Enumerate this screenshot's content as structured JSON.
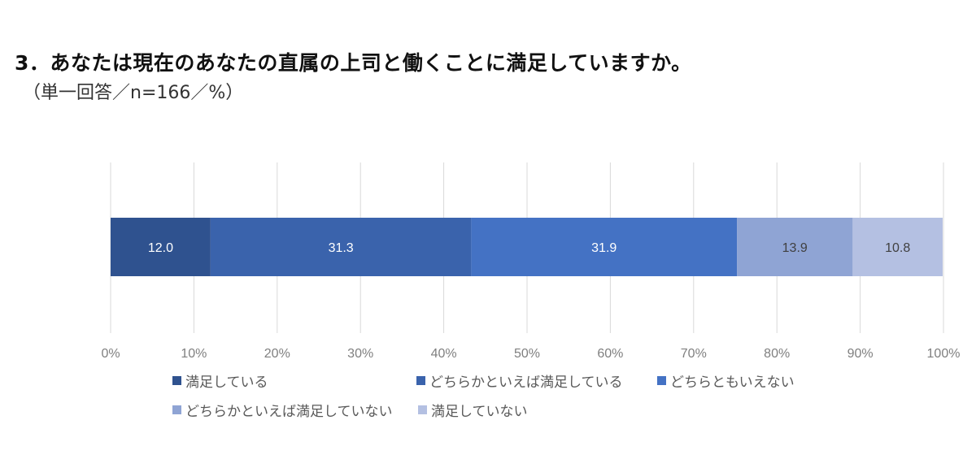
{
  "title": "3．あなたは現在のあなたの直属の上司と働くことに満足していますか。",
  "subtitle": "（単一回答／n=166／%）",
  "chart_data": {
    "type": "bar",
    "orientation": "horizontal",
    "stacked": true,
    "normalized_100": true,
    "xlim": [
      0,
      100
    ],
    "xticks": [
      "0%",
      "10%",
      "20%",
      "30%",
      "40%",
      "50%",
      "60%",
      "70%",
      "80%",
      "90%",
      "100%"
    ],
    "grid": "vertical",
    "legend_position": "bottom",
    "series": [
      {
        "name": "満足している",
        "value": 12.0,
        "label": "12.0",
        "color": "#2f528f",
        "label_color": "#ffffff"
      },
      {
        "name": "どちらかといえば満足している",
        "value": 31.3,
        "label": "31.3",
        "color": "#3a63ac",
        "label_color": "#ffffff"
      },
      {
        "name": "どちらともいえない",
        "value": 31.9,
        "label": "31.9",
        "color": "#4472c4",
        "label_color": "#ffffff"
      },
      {
        "name": "どちらかといえば満足していない",
        "value": 13.9,
        "label": "13.9",
        "color": "#8fa4d4",
        "label_color": "#404040"
      },
      {
        "name": "満足していない",
        "value": 10.8,
        "label": "10.8",
        "color": "#b4c0e2",
        "label_color": "#404040"
      }
    ]
  }
}
